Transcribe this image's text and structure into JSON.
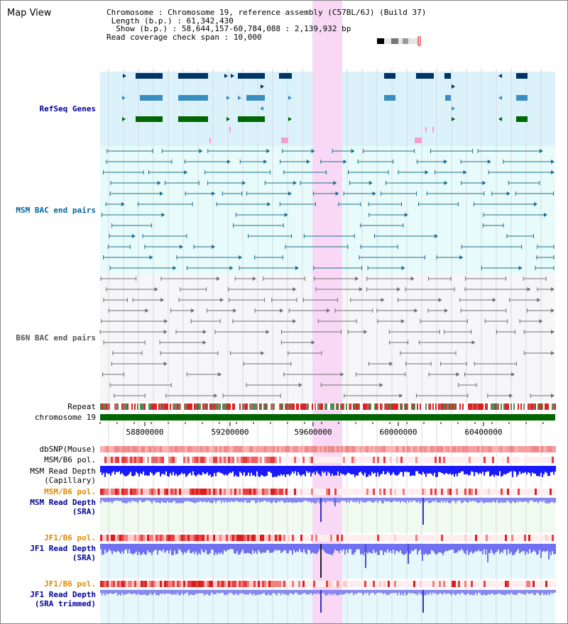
{
  "view": {
    "title": "Map View",
    "chromosome_key": "Chromosome",
    "chromosome_value": "Chromosome 19, reference assembly (C57BL/6J) (Build 37)",
    "length_key": "Length (b.p.)",
    "length_value": "61,342,430",
    "show_key": "Show (b.p.)",
    "show_value": "58,644,157-60,784,088 : 2,139,932 bp",
    "coverage_key": "Read coverage check span",
    "coverage_value": "10,000"
  },
  "tracks": {
    "refseq": "RefSeq Genes",
    "msm_bac": "MSM BAC end pairs",
    "b6n_bac": "B6N BAC end pairs",
    "repeat": "Repeat",
    "chromosome": "chromosome 19",
    "dbsnp": "dbSNP(Mouse)",
    "msm_b6_pol_1": "MSM/B6 pol.",
    "msm_depth_cap_1": "MSM Read Depth",
    "msm_depth_cap_2": "(Capillary)",
    "msm_b6_pol_2": "MSM/B6 pol.",
    "msm_depth_sra_1": "MSM Read Depth",
    "msm_depth_sra_2": "(SRA)",
    "jf1_b6_pol_1": "JF1/B6 pol.",
    "jf1_depth_sra_1": "JF1 Read Depth",
    "jf1_depth_sra_2": "(SRA)",
    "jf1_b6_pol_2": "JF1/B6 pol.",
    "jf1_depth_trim_1": "JF1 Read Depth",
    "jf1_depth_trim_2": "(SRA trimmed)"
  },
  "axis": {
    "ticks": [
      "58800000",
      "59200000",
      "59600000",
      "60000000",
      "60400000"
    ]
  },
  "colors": {
    "blue_label": "#000099",
    "teal_label": "#006699",
    "grey_label": "#555555",
    "orange_label": "#e08a00",
    "highlight": "#f8d8f4",
    "gene_dark": "#003366",
    "gene_mid": "#3a8ebf",
    "gene_green": "#006600",
    "chromosome_green": "#006600"
  }
}
